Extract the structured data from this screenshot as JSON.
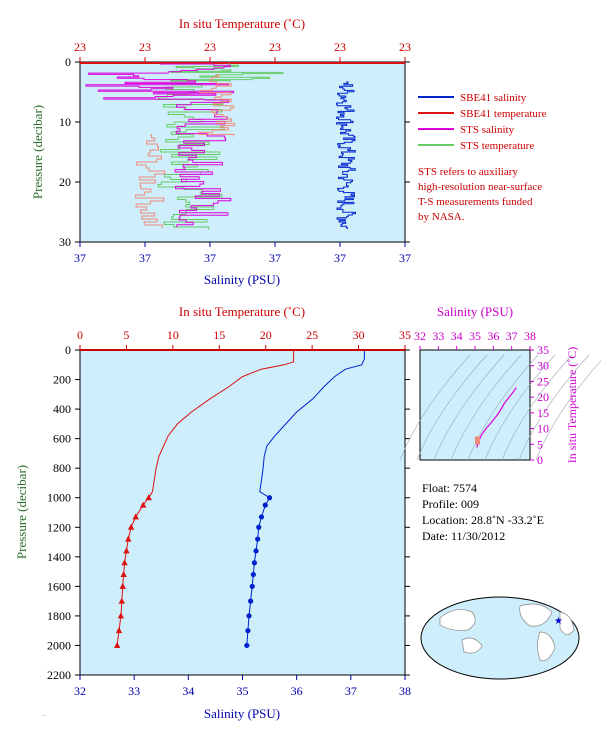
{
  "colors": {
    "panel_bg": "#cdeefa",
    "salinity": "#0022cc",
    "temperature": "#dd1111",
    "sts_salinity": "#dd00dd",
    "sts_temperature": "#66cc66",
    "axis_red": "#cc0000",
    "axis_blue": "#0000aa",
    "axis_green": "#2a6e2a",
    "axis_magenta": "#cc00cc"
  },
  "top_chart": {
    "title": "In situ Temperature (˚C)",
    "xlabel": "Salinity (PSU)",
    "ylabel": "Pressure (decibar)",
    "temp_ticks": [
      "23",
      "23",
      "23",
      "23",
      "23",
      "23"
    ],
    "sal_ticks": [
      "37",
      "37",
      "37",
      "37",
      "37",
      "37"
    ],
    "pressure_ticks": [
      "0",
      "10",
      "20",
      "30"
    ],
    "legend": [
      {
        "label": "SBE41 salinity",
        "color": "#0022cc"
      },
      {
        "label": "SBE41 temperature",
        "color": "#dd1111"
      },
      {
        "label": "STS salinity",
        "color": "#dd00dd"
      },
      {
        "label": "STS temperature",
        "color": "#66cc66"
      }
    ],
    "note": [
      "STS refers to auxiliary",
      "high-resolution near-surface",
      "T-S measurements funded",
      "by NASA."
    ]
  },
  "main_chart": {
    "title": "In situ Temperature (˚C)",
    "xlabel": "Salinity (PSU)",
    "ylabel": "Pressure (decibar)",
    "temp_ticks": [
      "0",
      "5",
      "10",
      "15",
      "20",
      "25",
      "30",
      "35"
    ],
    "sal_ticks": [
      "32",
      "33",
      "34",
      "35",
      "36",
      "37",
      "38"
    ],
    "pressure_ticks": [
      "0",
      "200",
      "400",
      "600",
      "800",
      "1000",
      "1200",
      "1400",
      "1600",
      "1800",
      "2000",
      "2200"
    ]
  },
  "ts_chart": {
    "title": "Salinity (PSU)",
    "ylabel": "In situ Temperature (˚C)",
    "sal_ticks": [
      "32",
      "33",
      "34",
      "35",
      "36",
      "37",
      "38"
    ],
    "temp_ticks": [
      "0",
      "5",
      "10",
      "15",
      "20",
      "25",
      "30",
      "35"
    ]
  },
  "float_info": {
    "float": "Float: 7574",
    "profile": "Profile: 009",
    "location": "Location: 28.8˚N -33.2˚E",
    "date": "Date: 11/30/2012"
  },
  "chart_data": [
    {
      "type": "line",
      "title": "In situ Temperature (˚C)",
      "xlabel": "Salinity (PSU)",
      "ylabel": "Pressure (decibar)",
      "ylim": [
        30,
        0
      ],
      "series": [
        {
          "name": "SBE41 salinity",
          "x": [
            37.26,
            37.26,
            37.26,
            37.26,
            37.26,
            37.26,
            37.26
          ],
          "y": [
            0,
            5,
            10,
            15,
            20,
            25,
            27
          ]
        },
        {
          "name": "SBE41 temperature",
          "x": [
            23.0,
            23.0
          ],
          "y": [
            0,
            0.3
          ]
        },
        {
          "name": "STS salinity",
          "x": [
            37.1,
            37.12,
            37.11,
            37.13,
            37.12,
            37.11
          ],
          "y": [
            0.5,
            3,
            8,
            14,
            20,
            27
          ]
        },
        {
          "name": "STS temperature",
          "x": [
            23.05,
            23.06,
            23.04,
            23.05,
            23.03
          ],
          "y": [
            0.5,
            5,
            12,
            20,
            27
          ]
        }
      ]
    },
    {
      "type": "line",
      "title": "In situ Temperature (˚C)",
      "xlabel": "Salinity (PSU)",
      "ylabel": "Pressure (decibar)",
      "xlim": [
        32,
        38
      ],
      "temp_lim": [
        0,
        35
      ],
      "ylim": [
        2200,
        0
      ],
      "series": [
        {
          "name": "salinity",
          "x": [
            37.25,
            37.25,
            37.2,
            36.9,
            36.7,
            36.5,
            36.3,
            36.0,
            35.8,
            35.6,
            35.45,
            35.4,
            35.38,
            35.35,
            35.32,
            35.5,
            35.42,
            35.35,
            35.3,
            35.28,
            35.25,
            35.22,
            35.2,
            35.18,
            35.15,
            35.12,
            35.1,
            35.08
          ],
          "y": [
            0,
            60,
            100,
            130,
            180,
            250,
            330,
            420,
            500,
            580,
            650,
            720,
            800,
            880,
            960,
            1000,
            1050,
            1130,
            1200,
            1280,
            1360,
            1440,
            1520,
            1600,
            1700,
            1800,
            1900,
            2000
          ]
        },
        {
          "name": "temperature",
          "x": [
            23.0,
            23.0,
            22.0,
            19.5,
            17.5,
            16.0,
            14.0,
            12.0,
            10.5,
            9.5,
            9.0,
            8.5,
            8.2,
            8.0,
            7.8,
            7.4,
            6.8,
            6.0,
            5.5,
            5.2,
            5.0,
            4.8,
            4.7,
            4.6,
            4.5,
            4.4,
            4.2,
            4.0
          ],
          "y": [
            0,
            80,
            100,
            130,
            180,
            250,
            330,
            420,
            500,
            580,
            650,
            720,
            800,
            880,
            960,
            1000,
            1050,
            1130,
            1200,
            1280,
            1360,
            1440,
            1520,
            1600,
            1700,
            1800,
            1900,
            2000
          ]
        }
      ]
    },
    {
      "type": "line",
      "title": "Salinity (PSU)",
      "ylabel": "In situ Temperature (˚C)",
      "xlim": [
        32,
        38
      ],
      "ylim": [
        0,
        35
      ],
      "series": [
        {
          "name": "profile",
          "x": [
            35.1,
            35.2,
            35.35,
            35.6,
            35.9,
            36.3,
            36.6,
            37.0,
            37.25
          ],
          "y": [
            4,
            6,
            8,
            10,
            12,
            15,
            18,
            21,
            23
          ]
        }
      ]
    }
  ]
}
